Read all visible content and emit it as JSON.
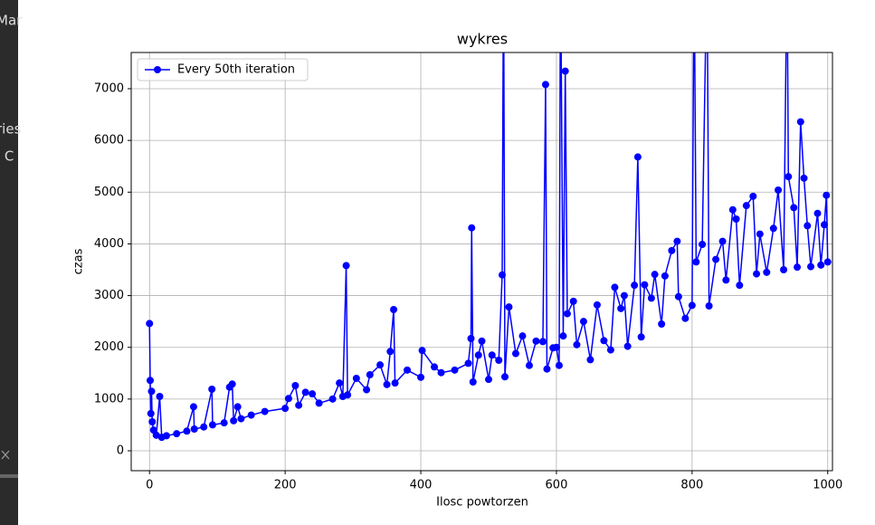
{
  "sidebar": [
    "Mar",
    "ries",
    "l C"
  ],
  "chart_data": {
    "type": "line",
    "title": "wykres",
    "x_label": "Ilosc powtorzen",
    "y_label": "czas",
    "x": [
      0,
      1,
      2,
      3,
      4,
      6,
      10,
      15,
      18,
      25,
      40,
      55,
      65,
      66,
      80,
      92,
      93,
      110,
      118,
      122,
      124,
      130,
      135,
      150,
      170,
      200,
      205,
      215,
      220,
      230,
      240,
      250,
      270,
      280,
      285,
      290,
      292,
      305,
      320,
      325,
      340,
      350,
      355,
      360,
      362,
      380,
      400,
      402,
      420,
      430,
      450,
      470,
      474,
      475,
      477,
      485,
      490,
      500,
      505,
      515,
      520,
      522,
      524,
      530,
      540,
      550,
      560,
      570,
      580,
      584,
      586,
      595,
      600,
      604,
      606,
      610,
      613,
      616,
      625,
      630,
      640,
      650,
      660,
      670,
      680,
      686,
      695,
      700,
      705,
      715,
      720,
      725,
      730,
      740,
      745,
      755,
      760,
      770,
      778,
      780,
      790,
      800,
      803,
      806,
      815,
      822,
      825,
      835,
      845,
      850,
      860,
      865,
      870,
      880,
      890,
      895,
      900,
      910,
      920,
      927,
      935,
      940,
      942,
      950,
      955,
      960,
      965,
      970,
      975,
      985,
      990,
      995,
      998,
      1000
    ],
    "series": [
      {
        "name": "Every 50th iteration",
        "color": "#0000ff",
        "values": [
          2460,
          1360,
          720,
          1150,
          560,
          400,
          300,
          1050,
          260,
          290,
          330,
          380,
          850,
          420,
          460,
          1190,
          500,
          540,
          1230,
          1290,
          580,
          850,
          620,
          690,
          760,
          820,
          1010,
          1260,
          880,
          1130,
          1100,
          920,
          1000,
          1310,
          1050,
          3580,
          1080,
          1400,
          1180,
          1470,
          1660,
          1280,
          1920,
          2730,
          1310,
          1560,
          1420,
          1940,
          1620,
          1510,
          1560,
          1690,
          2170,
          4310,
          1330,
          1850,
          2120,
          1380,
          1850,
          1750,
          3400,
          9500,
          1430,
          2780,
          1880,
          2220,
          1650,
          2120,
          2110,
          7080,
          1580,
          1990,
          2000,
          1650,
          9500,
          2220,
          7340,
          2650,
          2890,
          2050,
          2500,
          1760,
          2820,
          2130,
          1950,
          3160,
          2750,
          3000,
          2020,
          3200,
          5680,
          2200,
          3210,
          2950,
          3410,
          2450,
          3380,
          3870,
          4050,
          2980,
          2560,
          2810,
          9500,
          3650,
          3990,
          9500,
          2800,
          3700,
          4050,
          3300,
          4660,
          4480,
          3200,
          4740,
          4920,
          3420,
          4190,
          3450,
          4300,
          5040,
          3500,
          9500,
          5300,
          4700,
          3550,
          6360,
          5270,
          4350,
          3560,
          4590,
          3590,
          4370,
          4940,
          3650
        ]
      }
    ],
    "xlim": [
      -27,
      1007
    ],
    "ylim": [
      -385,
      7700
    ],
    "xticks": [
      0,
      200,
      400,
      600,
      800,
      1000
    ],
    "yticks": [
      0,
      1000,
      2000,
      3000,
      4000,
      5000,
      6000,
      7000
    ],
    "grid": true,
    "legend": "upper left"
  }
}
